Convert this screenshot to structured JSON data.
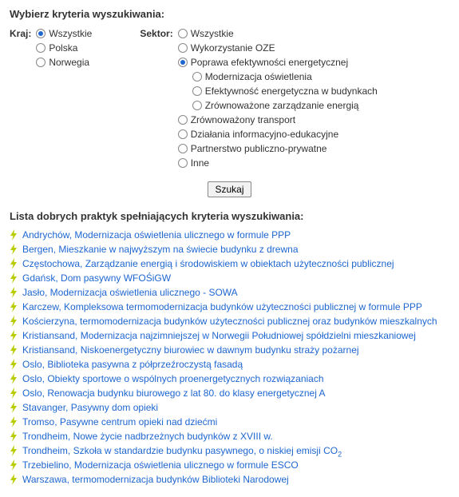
{
  "headings": {
    "criteria": "Wybierz kryteria wyszukiwania:",
    "results": "Lista dobrych praktyk spełniających kryteria wyszukiwania:"
  },
  "form": {
    "kraj_label": "Kraj:",
    "sektor_label": "Sektor:",
    "search_button": "Szukaj",
    "kraj_options": [
      {
        "label": "Wszystkie",
        "selected": true
      },
      {
        "label": "Polska",
        "selected": false
      },
      {
        "label": "Norwegia",
        "selected": false
      }
    ],
    "sektor_options": [
      {
        "label": "Wszystkie",
        "selected": false,
        "indent": 0
      },
      {
        "label": "Wykorzystanie OZE",
        "selected": false,
        "indent": 0
      },
      {
        "label": "Poprawa efektywności energetycznej",
        "selected": true,
        "indent": 0
      },
      {
        "label": "Modernizacja oświetlenia",
        "selected": false,
        "indent": 1
      },
      {
        "label": "Efektywność energetyczna w budynkach",
        "selected": false,
        "indent": 1
      },
      {
        "label": "Zrównoważone zarządzanie energią",
        "selected": false,
        "indent": 1
      },
      {
        "label": "Zrównoważony transport",
        "selected": false,
        "indent": 0
      },
      {
        "label": "Działania informacyjno-edukacyjne",
        "selected": false,
        "indent": 0
      },
      {
        "label": "Partnerstwo publiczno-prywatne",
        "selected": false,
        "indent": 0
      },
      {
        "label": "Inne",
        "selected": false,
        "indent": 0
      }
    ]
  },
  "results": [
    "Andrychów, Modernizacja oświetlenia ulicznego w formule PPP",
    "Bergen, Mieszkanie w najwyższym na świecie budynku z drewna",
    "Częstochowa, Zarządzanie energią i środowiskiem w obiektach użyteczności publicznej",
    "Gdańsk, Dom pasywny WFOŚiGW",
    "Jasło, Modernizacja oświetlenia ulicznego - SOWA",
    "Karczew, Kompleksowa termomodernizacja budynków użyteczności publicznej w formule PPP",
    "Kościerzyna, termomodernizacja budynków użyteczności publicznej oraz budynków mieszkalnych",
    "Kristiansand, Modernizacja najzimniejszej w Norwegii Południowej spółdzielni mieszkaniowej",
    "Kristiansand, Niskoenergetyczny biurowiec w dawnym budynku straży pożarnej",
    "Oslo, Biblioteka pasywna z półprzeźroczystą fasadą",
    "Oslo, Obiekty sportowe o wspólnych proenergetycznych rozwiązaniach",
    "Oslo, Renowacja budynku biurowego z lat 80. do klasy energetycznej A",
    "Stavanger, Pasywny dom opieki",
    "Tromso, Pasywne centrum opieki nad dziećmi",
    "Trondheim, Nowe życie nadbrzeżnych budynków z XVIII w.",
    "Trondheim, Szkoła w standardzie budynku pasywnego, o niskiej emisji CO<sub>2</sub>",
    "Trzebielino, Modernizacja oświetlenia ulicznego w formule ESCO",
    "Warszawa, termomodernizacja budynków Biblioteki Narodowej"
  ],
  "colors": {
    "link": "#1e66d0",
    "bolt": "#b8cc00",
    "radio_fill": "#1e66d0"
  }
}
